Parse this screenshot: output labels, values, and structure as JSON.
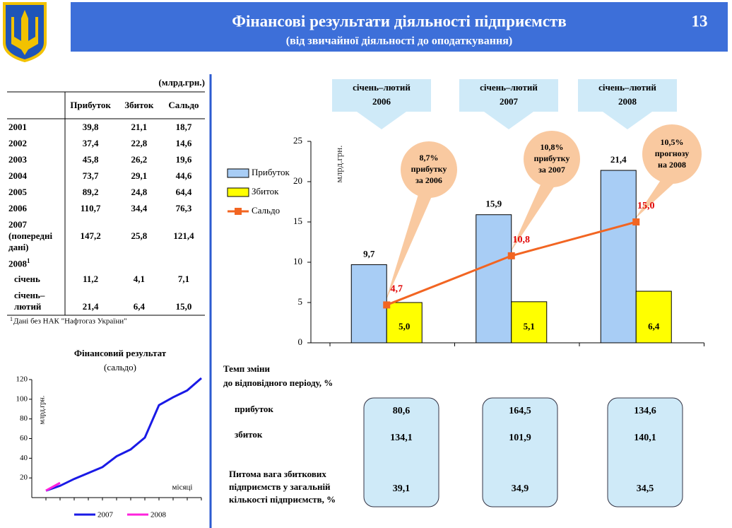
{
  "header": {
    "title": "Фінансові результати діяльності підприємств",
    "subtitle": "(від звичайної діяльності до оподаткування)",
    "page_number": "13"
  },
  "table": {
    "unit": "(млрд.грн.)",
    "columns": [
      "Прибуток",
      "Збиток",
      "Сальдо"
    ],
    "rows": [
      [
        "2001",
        "39,8",
        "21,1",
        "18,7"
      ],
      [
        "2002",
        "37,4",
        "22,8",
        "14,6"
      ],
      [
        "2003",
        "45,8",
        "26,2",
        "19,6"
      ],
      [
        "2004",
        "73,7",
        "29,1",
        "44,6"
      ],
      [
        "2005",
        "89,2",
        "24,8",
        "64,4"
      ],
      [
        "2006",
        "110,7",
        "34,4",
        "76,3"
      ],
      [
        "2007 (попередні дані)",
        "147,2",
        "25,8",
        "121,4"
      ]
    ],
    "section": {
      "label": "2008",
      "note_mark": "1",
      "rows": [
        [
          "січень",
          "11,2",
          "4,1",
          "7,1"
        ],
        [
          "січень–лютий",
          "21,4",
          "6,4",
          "15,0"
        ]
      ]
    },
    "footnote": {
      "mark": "1",
      "text": "Дані  без НАК \"Нафтогаз України\""
    }
  },
  "chart_data": [
    {
      "type": "bar",
      "categories": [
        "2006",
        "2007",
        "2008"
      ],
      "period_label": "січень–лютий",
      "ylabel": "млрд.грн.",
      "ylim": [
        0,
        25
      ],
      "yticks": [
        0,
        5,
        10,
        15,
        20,
        25
      ],
      "series": [
        {
          "name": "Прибуток",
          "color": "#a8cdf5",
          "values": [
            9.7,
            15.9,
            21.4
          ],
          "value_labels": [
            "9,7",
            "15,9",
            "21,4"
          ]
        },
        {
          "name": "Збиток",
          "color": "#ffff00",
          "values": [
            5.0,
            5.1,
            6.4
          ],
          "value_labels": [
            "5,0",
            "5,1",
            "6,4"
          ]
        },
        {
          "name": "Сальдо",
          "type": "line",
          "color": "#f26522",
          "label_color": "#e00000",
          "values": [
            4.7,
            10.8,
            15.0
          ],
          "value_labels": [
            "4,7",
            "10,8",
            "15,0"
          ]
        }
      ],
      "annotations": [
        [
          "8,7%",
          "прибутку",
          "за  2006"
        ],
        [
          "10,8%",
          "прибутку",
          "за  2007"
        ],
        [
          "10,5%",
          "прогнозу",
          "на  2008"
        ]
      ]
    },
    {
      "type": "line",
      "title": "Фінансовий  результат",
      "subtitle": "(сальдо)",
      "ylabel": "млрд.грн.",
      "xlabel": "місяці",
      "x": [
        1,
        2,
        3,
        4,
        5,
        6,
        7,
        8,
        9,
        10,
        11,
        12
      ],
      "xlim": [
        0,
        12
      ],
      "ylim": [
        0,
        120
      ],
      "yticks": [
        20,
        40,
        60,
        80,
        100,
        120
      ],
      "series": [
        {
          "name": "2007",
          "color": "#1a1ae6",
          "values": [
            7,
            12,
            19,
            25,
            31,
            42,
            49,
            61,
            94,
            102,
            109,
            121.4
          ]
        },
        {
          "name": "2008",
          "color": "#ff22dd",
          "values": [
            7.1,
            15.0,
            null,
            null,
            null,
            null,
            null,
            null,
            null,
            null,
            null,
            null
          ]
        }
      ]
    }
  ],
  "rates": {
    "title": [
      "Темп зміни",
      "до відповідного періоду, %"
    ],
    "rows": [
      {
        "label": [
          "прибуток"
        ],
        "values": [
          "80,6",
          "164,5",
          "134,6"
        ]
      },
      {
        "label": [
          "збиток"
        ],
        "values": [
          "134,1",
          "101,9",
          "140,1"
        ]
      },
      {
        "label": [
          "Питома вага збиткових",
          "підприємств у загальній",
          "кількості підприємств, %"
        ],
        "values": [
          "39,1",
          "34,9",
          "34,5"
        ]
      }
    ]
  }
}
